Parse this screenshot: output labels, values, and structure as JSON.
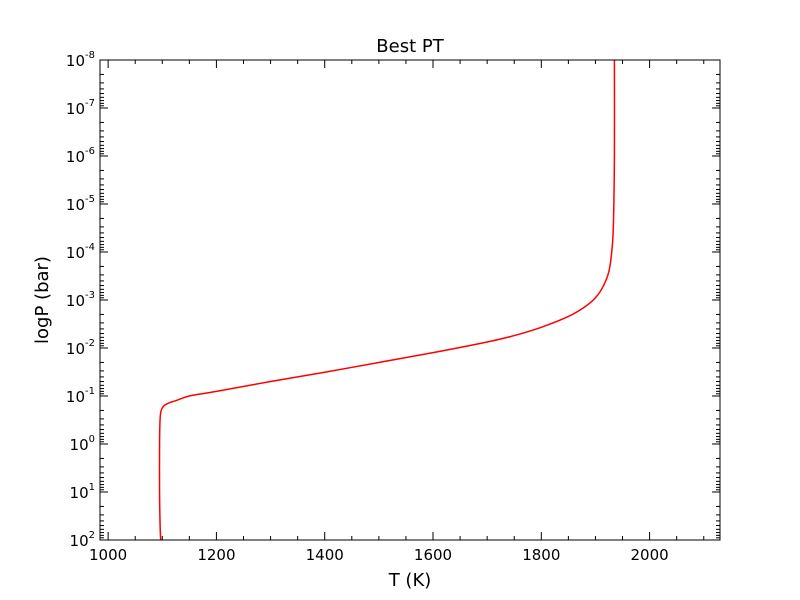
{
  "chart_data": {
    "type": "line",
    "title": "Best PT",
    "xlabel": "T (K)",
    "ylabel": "logP (bar)",
    "xlim": [
      985,
      2130
    ],
    "ylim": [
      100,
      1e-08
    ],
    "y_scale": "log",
    "y_inverted": true,
    "grid": false,
    "x_ticks": [
      1000,
      1200,
      1400,
      1600,
      1800,
      2000
    ],
    "y_ticks": [
      {
        "base": "10",
        "exp": "-8",
        "value": 1e-08
      },
      {
        "base": "10",
        "exp": "-7",
        "value": 1e-07
      },
      {
        "base": "10",
        "exp": "-6",
        "value": 1e-06
      },
      {
        "base": "10",
        "exp": "-5",
        "value": 1e-05
      },
      {
        "base": "10",
        "exp": "-4",
        "value": 0.0001
      },
      {
        "base": "10",
        "exp": "-3",
        "value": 0.001
      },
      {
        "base": "10",
        "exp": "-2",
        "value": 0.01
      },
      {
        "base": "10",
        "exp": "-1",
        "value": 0.1
      },
      {
        "base": "10",
        "exp": "0",
        "value": 1
      },
      {
        "base": "10",
        "exp": "1",
        "value": 10
      },
      {
        "base": "10",
        "exp": "2",
        "value": 100
      }
    ],
    "series": [
      {
        "color": "#ff0000",
        "points": [
          [
            1097,
            100
          ],
          [
            1096,
            50
          ],
          [
            1095,
            10
          ],
          [
            1095,
            1
          ],
          [
            1096,
            0.3
          ],
          [
            1098,
            0.2
          ],
          [
            1103,
            0.16
          ],
          [
            1112,
            0.14
          ],
          [
            1125,
            0.125
          ],
          [
            1150,
            0.1
          ],
          [
            1200,
            0.08
          ],
          [
            1300,
            0.05
          ],
          [
            1400,
            0.032
          ],
          [
            1500,
            0.02
          ],
          [
            1600,
            0.0125
          ],
          [
            1700,
            0.0075
          ],
          [
            1750,
            0.0055
          ],
          [
            1800,
            0.0037
          ],
          [
            1850,
            0.0022
          ],
          [
            1880,
            0.0014
          ],
          [
            1900,
            0.0009
          ],
          [
            1915,
            0.0005
          ],
          [
            1925,
            0.00025
          ],
          [
            1930,
            0.0001
          ],
          [
            1933,
            3e-05
          ],
          [
            1935,
            1e-06
          ],
          [
            1935,
            1e-08
          ]
        ]
      }
    ]
  }
}
